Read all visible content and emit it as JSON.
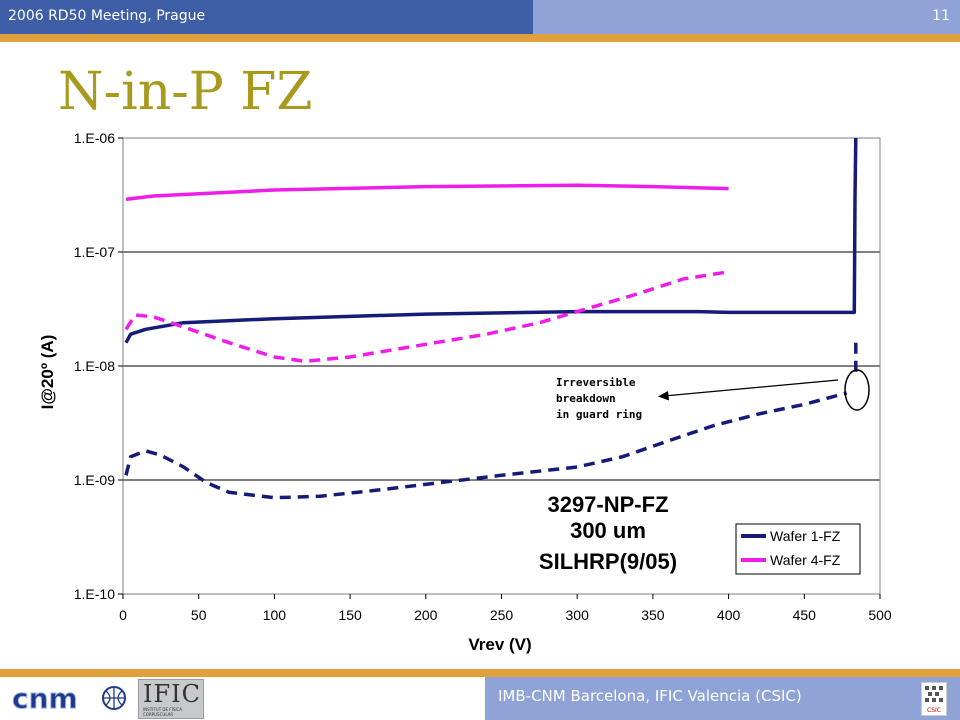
{
  "header": {
    "meeting": "2006 RD50 Meeting, Prague",
    "page_number": "11"
  },
  "slide": {
    "title": "N-in-P FZ"
  },
  "footer": {
    "text": "IMB-CNM Barcelona, IFIC Valencia (CSIC)",
    "logo_cnm": "cnm",
    "logo_ific": "IFIC",
    "logo_ific_sub": "INSTITUT DE FÍSICA CORPUSCULAR",
    "logo_csic": "CSIC"
  },
  "chart_data": {
    "type": "line",
    "xlabel": "Vrev (V)",
    "ylabel": "I@20º (A)",
    "xlim": [
      0,
      500
    ],
    "ylim": [
      1e-10,
      1e-06
    ],
    "log_y": true,
    "x_ticks": [
      "0",
      "50",
      "100",
      "150",
      "200",
      "250",
      "300",
      "350",
      "400",
      "450",
      "500"
    ],
    "y_ticks": [
      "1.E-10",
      "1.E-09",
      "1.E-08",
      "1.E-07",
      "1.E-06"
    ],
    "grid": "horizontal",
    "legend": "bottom-right",
    "legend_entries": [
      "Wafer 1-FZ",
      "Wafer 4-FZ"
    ],
    "colors": {
      "wafer1": "#141c78",
      "wafer4": "#ee1ee8"
    },
    "annotation": {
      "lines": [
        "Irreversible",
        "breakdown",
        "in guard ring"
      ],
      "x": 482,
      "y": 6.5e-09
    },
    "label_block": [
      "3297-NP-FZ",
      "300 um",
      "SILHRP(9/05)"
    ],
    "series": [
      {
        "legend_index": 0,
        "color_key": "wafer1",
        "dash": false,
        "points": [
          [
            2,
            1.6e-08
          ],
          [
            5,
            1.9e-08
          ],
          [
            15,
            2.1e-08
          ],
          [
            40,
            2.4e-08
          ],
          [
            100,
            2.6e-08
          ],
          [
            200,
            2.85e-08
          ],
          [
            300,
            3e-08
          ],
          [
            380,
            3e-08
          ],
          [
            400,
            2.95e-08
          ],
          [
            450,
            2.95e-08
          ],
          [
            483,
            2.95e-08
          ],
          [
            483.5,
            3e-07
          ],
          [
            484,
            1e-06
          ]
        ]
      },
      {
        "legend_index": 0,
        "color_key": "wafer1",
        "dash": true,
        "points": [
          [
            2,
            1.1e-09
          ],
          [
            5,
            1.6e-09
          ],
          [
            15,
            1.8e-09
          ],
          [
            25,
            1.65e-09
          ],
          [
            40,
            1.3e-09
          ],
          [
            55,
            9.5e-10
          ],
          [
            70,
            7.8e-10
          ],
          [
            100,
            7e-10
          ],
          [
            130,
            7.2e-10
          ],
          [
            170,
            8.2e-10
          ],
          [
            210,
            9.5e-10
          ],
          [
            250,
            1.1e-09
          ],
          [
            300,
            1.3e-09
          ],
          [
            330,
            1.6e-09
          ],
          [
            360,
            2.2e-09
          ],
          [
            390,
            3e-09
          ],
          [
            420,
            3.8e-09
          ],
          [
            450,
            4.6e-09
          ],
          [
            478,
            5.8e-09
          ]
        ]
      },
      {
        "legend_index": 0,
        "color_key": "wafer1",
        "dash": true,
        "points": [
          [
            484,
            1.6e-08
          ],
          [
            484,
            8e-09
          ]
        ]
      },
      {
        "legend_index": 1,
        "color_key": "wafer4",
        "dash": false,
        "points": [
          [
            2,
            2.9e-07
          ],
          [
            20,
            3.1e-07
          ],
          [
            100,
            3.5e-07
          ],
          [
            200,
            3.75e-07
          ],
          [
            300,
            3.85e-07
          ],
          [
            350,
            3.75e-07
          ],
          [
            400,
            3.6e-07
          ]
        ]
      },
      {
        "legend_index": 1,
        "color_key": "wafer4",
        "dash": true,
        "points": [
          [
            2,
            2.1e-08
          ],
          [
            8,
            2.8e-08
          ],
          [
            20,
            2.7e-08
          ],
          [
            40,
            2.2e-08
          ],
          [
            70,
            1.6e-08
          ],
          [
            100,
            1.2e-08
          ],
          [
            120,
            1.1e-08
          ],
          [
            150,
            1.2e-08
          ],
          [
            200,
            1.55e-08
          ],
          [
            240,
            1.9e-08
          ],
          [
            275,
            2.4e-08
          ],
          [
            300,
            3e-08
          ],
          [
            340,
            4.3e-08
          ],
          [
            370,
            5.8e-08
          ],
          [
            400,
            6.7e-08
          ]
        ]
      }
    ]
  }
}
